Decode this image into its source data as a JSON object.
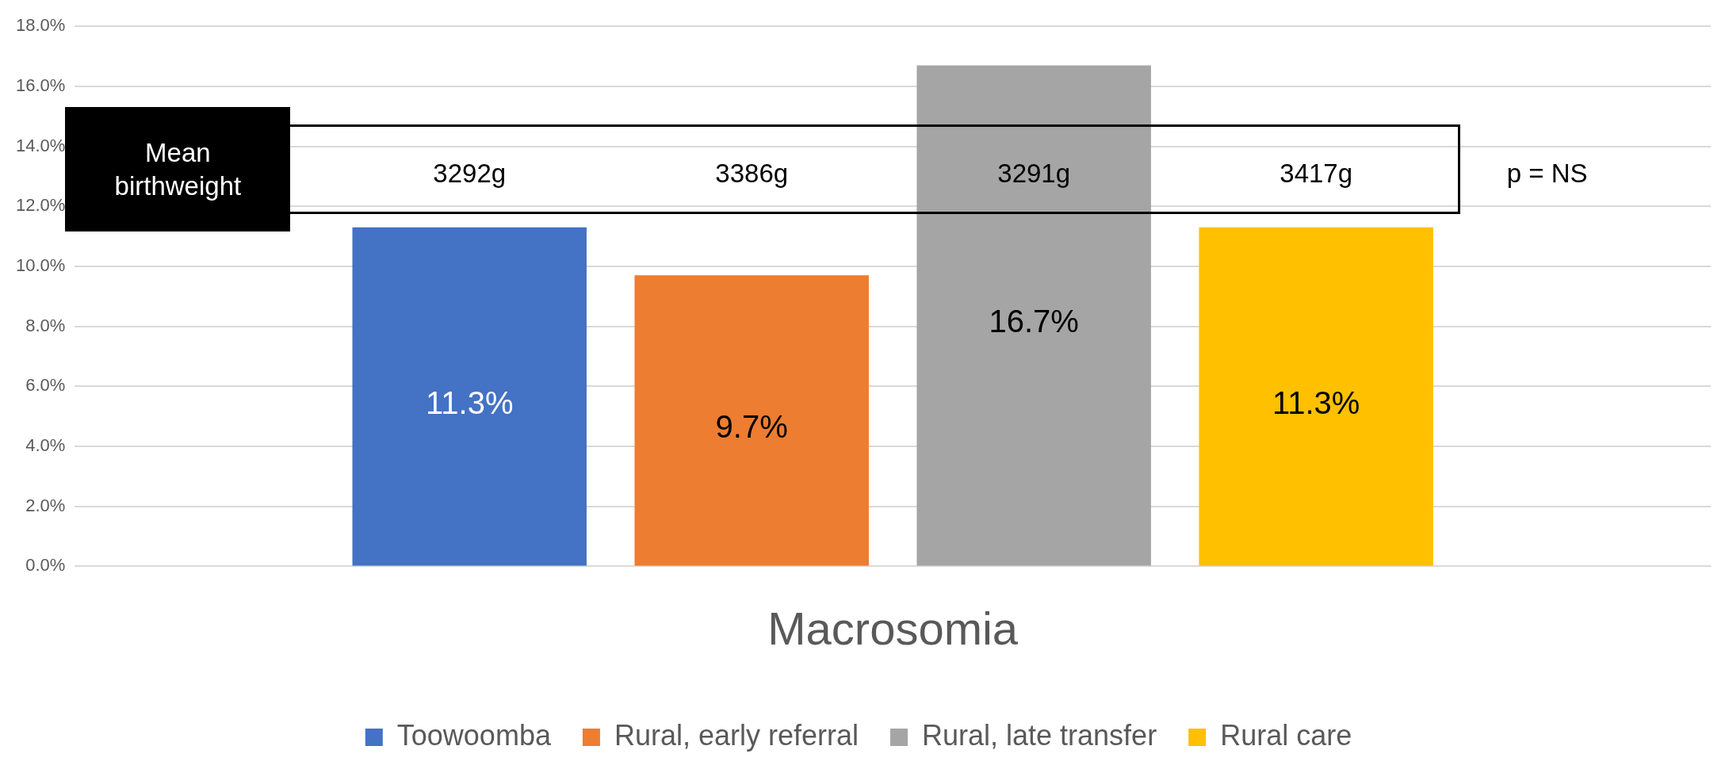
{
  "chart_data": {
    "type": "bar",
    "categories": [
      "Macrosomia"
    ],
    "series": [
      {
        "name": "Toowoomba",
        "color": "#4472c4",
        "values": [
          11.3
        ],
        "value_labels": [
          "11.3%"
        ]
      },
      {
        "name": "Rural, early referral",
        "color": "#ed7d31",
        "values": [
          9.7
        ],
        "value_labels": [
          "9.7%"
        ]
      },
      {
        "name": "Rural, late transfer",
        "color": "#a5a5a5",
        "values": [
          16.7
        ],
        "value_labels": [
          "16.7%"
        ]
      },
      {
        "name": "Rural care",
        "color": "#ffc000",
        "values": [
          11.3
        ],
        "value_labels": [
          "11.3%"
        ]
      }
    ],
    "ylim": [
      0,
      18
    ],
    "yticks": [
      {
        "value": 0,
        "label": "0.0%"
      },
      {
        "value": 2,
        "label": "2.0%"
      },
      {
        "value": 4,
        "label": "4.0%"
      },
      {
        "value": 6,
        "label": "6.0%"
      },
      {
        "value": 8,
        "label": "8.0%"
      },
      {
        "value": 10,
        "label": "10.0%"
      },
      {
        "value": 12,
        "label": "12.0%"
      },
      {
        "value": 14,
        "label": "14.0%"
      },
      {
        "value": 16,
        "label": "16.0%"
      },
      {
        "value": 18,
        "label": "18.0%"
      }
    ],
    "grid": "y",
    "legend": "bottom",
    "annotations": [
      "Mean birthweight",
      "3292g",
      "3386g",
      "3291g",
      "3417g",
      "p = NS"
    ]
  }
}
